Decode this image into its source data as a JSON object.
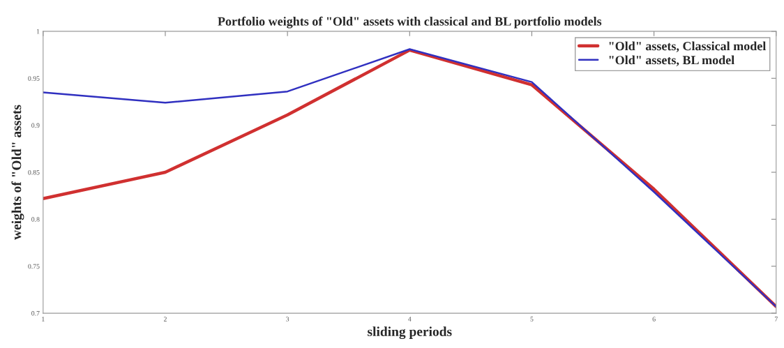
{
  "chart_data": {
    "type": "line",
    "title": "Portfolio weights of \"Old\" assets with classical and BL portfolio models",
    "xlabel": "sliding periods",
    "ylabel": "weights of \"Old\" assets",
    "x": [
      1,
      2,
      3,
      4,
      5,
      6,
      7
    ],
    "series": [
      {
        "name": "\"Old\" assets, Classical model",
        "color": "#d03030",
        "values": [
          0.822,
          0.85,
          0.911,
          0.98,
          0.943,
          0.832,
          0.707
        ]
      },
      {
        "name": "\"Old\" assets, BL model",
        "color": "#3030c0",
        "values": [
          0.935,
          0.924,
          0.936,
          0.981,
          0.946,
          0.829,
          0.707
        ]
      }
    ],
    "xlim": [
      1,
      7
    ],
    "xticks": [
      1,
      2,
      3,
      4,
      5,
      6,
      7
    ],
    "ylim": [
      0.7,
      1
    ],
    "yticks": [
      0.7,
      0.75,
      0.8,
      0.85,
      0.9,
      0.95,
      1
    ],
    "grid": false,
    "legend": "top right",
    "marker": "none",
    "line_style": "solid"
  }
}
